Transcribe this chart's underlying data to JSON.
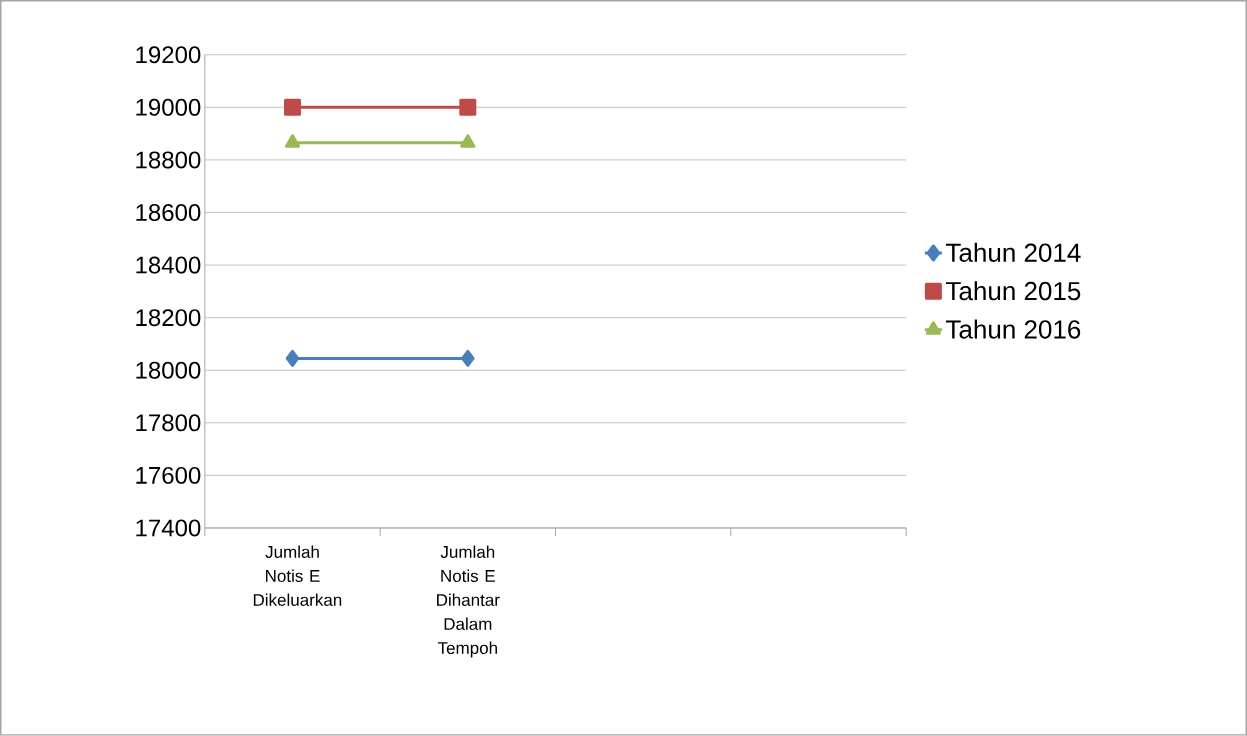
{
  "chart_data": {
    "type": "line",
    "categories": [
      "Jumlah Notis E Dikeluarkan",
      "Jumlah Notis E Dihantar Dalam Tempoh",
      null,
      null
    ],
    "series": [
      {
        "name": "Tahun 2014",
        "color": "#4a7ebb",
        "marker": "diamond",
        "values": [
          18045,
          18045,
          null,
          null
        ]
      },
      {
        "name": "Tahun 2015",
        "color": "#be4b48",
        "marker": "square",
        "values": [
          19000,
          19000,
          null,
          null
        ]
      },
      {
        "name": "Tahun 2016",
        "color": "#98b954",
        "marker": "triangle",
        "values": [
          18865,
          18865,
          null,
          null
        ]
      }
    ],
    "ylim": [
      17400,
      19200
    ],
    "yticks": [
      17400,
      17600,
      17800,
      18000,
      18200,
      18400,
      18600,
      18800,
      19000,
      19200
    ],
    "grid": "y",
    "legend": "right"
  }
}
